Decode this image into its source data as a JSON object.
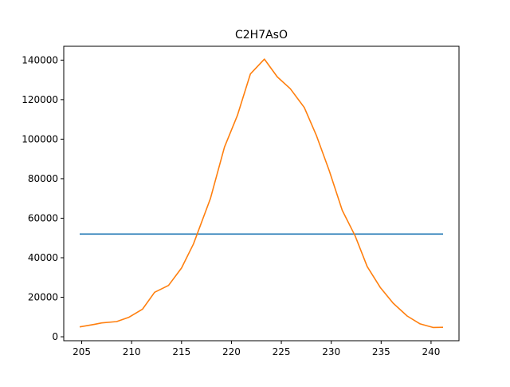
{
  "chart_data": {
    "type": "line",
    "title": "C2H7AsO",
    "xlabel": "",
    "ylabel": "",
    "xlim": [
      203.2,
      242.8
    ],
    "ylim": [
      -2000,
      147000
    ],
    "grid": false,
    "x_ticks": [
      205,
      210,
      215,
      220,
      225,
      230,
      235,
      240
    ],
    "y_ticks": [
      0,
      20000,
      40000,
      60000,
      80000,
      100000,
      120000,
      140000
    ],
    "series": [
      {
        "color": "#1f77b4",
        "x": [
          204.8,
          241.2
        ],
        "y": [
          52000,
          52000
        ]
      },
      {
        "color": "#ff7f0e",
        "x": [
          204.8,
          206.3,
          207.0,
          208.5,
          209.7,
          211.1,
          212.3,
          213.7,
          215.0,
          216.2,
          217.9,
          219.3,
          220.6,
          221.9,
          223.3,
          224.6,
          225.9,
          227.3,
          228.5,
          229.8,
          231.1,
          232.4,
          233.6,
          234.9,
          236.2,
          237.6,
          238.9,
          240.2,
          241.2
        ],
        "y": [
          5000,
          6300,
          7000,
          7700,
          9800,
          14000,
          22500,
          26000,
          34800,
          47000,
          70000,
          96000,
          112000,
          133000,
          140500,
          131500,
          125500,
          116000,
          102000,
          84000,
          64000,
          51000,
          35500,
          25000,
          17000,
          10500,
          6500,
          4700,
          4800
        ]
      }
    ]
  }
}
